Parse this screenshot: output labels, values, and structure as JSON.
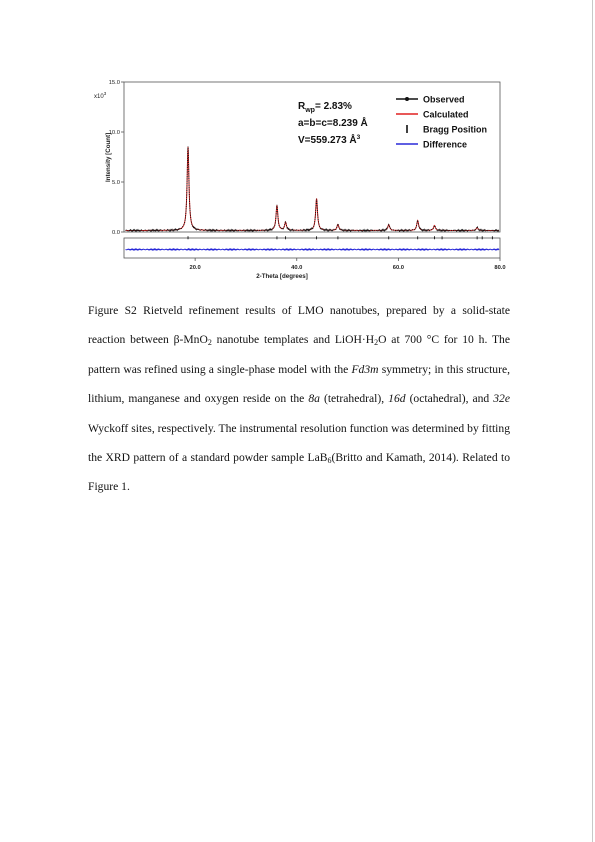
{
  "chart_data": {
    "type": "line",
    "title": "",
    "xlabel": "2-Theta [degrees]",
    "ylabel": "Intensity [Count]",
    "y_multiplier_label": "x10",
    "y_multiplier_exp": "3",
    "xlim": [
      6.0,
      80.0
    ],
    "ylim": [
      0.0,
      15.0
    ],
    "x_ticks": [
      20.0,
      40.0,
      60.0,
      80.0
    ],
    "x_tick_labels": [
      "20.0",
      "40.0",
      "60.0",
      "80.0"
    ],
    "y_ticks": [
      0.0,
      5.0,
      10.0,
      15.0
    ],
    "y_tick_labels": [
      "0.0",
      "5.0",
      "10.0",
      "15.0"
    ],
    "grid": false,
    "legend_position": "top-right",
    "series": [
      {
        "name": "Observed",
        "color": "#111111",
        "style": "solid line with dot markers"
      },
      {
        "name": "Calculated",
        "color": "#e02020",
        "style": "solid line"
      },
      {
        "name": "Bragg Position",
        "color": "#111111",
        "style": "vertical tick"
      },
      {
        "name": "Difference",
        "color": "#2a2ad8",
        "style": "solid line"
      }
    ],
    "peaks": [
      {
        "two_theta": 18.6,
        "intensity": 8.4
      },
      {
        "two_theta": 36.1,
        "intensity": 2.5
      },
      {
        "two_theta": 37.8,
        "intensity": 0.8
      },
      {
        "two_theta": 43.9,
        "intensity": 3.2
      },
      {
        "two_theta": 48.1,
        "intensity": 0.6
      },
      {
        "two_theta": 58.1,
        "intensity": 0.6
      },
      {
        "two_theta": 63.8,
        "intensity": 1.0
      },
      {
        "two_theta": 67.1,
        "intensity": 0.5
      },
      {
        "two_theta": 75.5,
        "intensity": 0.3
      }
    ],
    "background_level": 0.15,
    "bragg_positions": [
      18.6,
      36.1,
      37.8,
      43.9,
      48.1,
      58.1,
      63.8,
      67.1,
      68.6,
      75.5,
      76.5,
      78.5
    ],
    "annotations": {
      "rwp_symbol": "R",
      "rwp_sub": "wp",
      "rwp_value": "= 2.83%",
      "lattice": "a=b=c=8.239 Å",
      "volume": "V=559.273 Å",
      "volume_sup": "3"
    }
  },
  "caption": {
    "p1": "Figure S2 Rietveld refinement results of LMO nanotubes, prepared by a solid-state reaction between β-MnO",
    "s1": "2",
    "p2": " nanotube templates and LiOH·H",
    "s2": "2",
    "p3": "O at 700 °C for 10 h. The pattern was refined using a single-phase model with the ",
    "i1": "Fd3m",
    "p4": " symmetry; in this structure, lithium, manganese and oxygen reside on the ",
    "i2": "8a",
    "p5": " (tetrahedral), ",
    "i3": "16d",
    "p6": " (octahedral), and ",
    "i4": "32e",
    "p7": " Wyckoff sites, respectively. The instrumental resolution function was determined by fitting the XRD pattern of a standard powder sample LaB",
    "s3": "6",
    "p8": "(Britto and Kamath, 2014). Related to Figure 1."
  }
}
